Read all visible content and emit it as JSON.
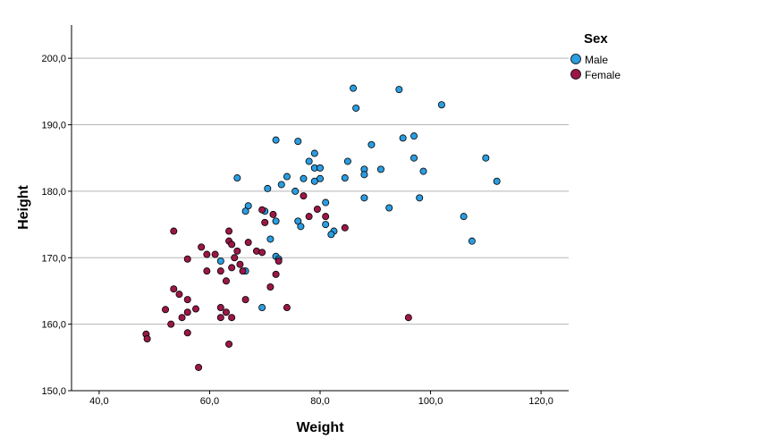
{
  "chart_data": {
    "type": "scatter",
    "title": "",
    "xlabel": "Weight",
    "ylabel": "Height",
    "xlim": [
      35,
      125
    ],
    "ylim": [
      150,
      205
    ],
    "xticks": [
      "40,0",
      "60,0",
      "80,0",
      "100,0",
      "120,0"
    ],
    "xtick_values": [
      40,
      60,
      80,
      100,
      120
    ],
    "yticks": [
      "150,0",
      "160,0",
      "170,0",
      "180,0",
      "190,0",
      "200,0"
    ],
    "ytick_values": [
      150,
      160,
      170,
      180,
      190,
      200
    ],
    "grid": "horizontal",
    "legend": {
      "title": "Sex",
      "placement": "top-right"
    },
    "series": [
      {
        "name": "Male",
        "color": "#2b9de0",
        "points": [
          [
            86.0,
            195.5
          ],
          [
            94.3,
            195.3
          ],
          [
            86.5,
            192.5
          ],
          [
            102.0,
            193.0
          ],
          [
            72.0,
            187.7
          ],
          [
            76.0,
            187.5
          ],
          [
            95.0,
            188.0
          ],
          [
            97.0,
            188.3
          ],
          [
            89.3,
            187.0
          ],
          [
            79.0,
            185.7
          ],
          [
            78.0,
            184.5
          ],
          [
            85.0,
            184.5
          ],
          [
            97.0,
            185.0
          ],
          [
            110.0,
            185.0
          ],
          [
            79.0,
            183.5
          ],
          [
            80.0,
            183.5
          ],
          [
            88.0,
            183.3
          ],
          [
            91.0,
            183.3
          ],
          [
            98.7,
            183.0
          ],
          [
            65.0,
            182.0
          ],
          [
            74.0,
            182.2
          ],
          [
            77.0,
            181.9
          ],
          [
            80.0,
            181.9
          ],
          [
            84.5,
            182.0
          ],
          [
            88.0,
            182.5
          ],
          [
            79.0,
            181.5
          ],
          [
            112.0,
            181.5
          ],
          [
            73.0,
            181.0
          ],
          [
            70.5,
            180.4
          ],
          [
            75.5,
            180.0
          ],
          [
            88.0,
            179.0
          ],
          [
            98.0,
            179.0
          ],
          [
            81.0,
            178.3
          ],
          [
            67.0,
            177.8
          ],
          [
            92.5,
            177.5
          ],
          [
            70.0,
            177.0
          ],
          [
            66.5,
            177.0
          ],
          [
            106.0,
            176.2
          ],
          [
            72.0,
            175.5
          ],
          [
            76.0,
            175.5
          ],
          [
            81.0,
            175.0
          ],
          [
            76.5,
            174.7
          ],
          [
            82.5,
            174.0
          ],
          [
            82.0,
            173.5
          ],
          [
            71.0,
            172.8
          ],
          [
            107.5,
            172.5
          ],
          [
            62.0,
            169.5
          ],
          [
            72.0,
            170.2
          ],
          [
            72.5,
            169.8
          ],
          [
            66.5,
            168.0
          ],
          [
            69.5,
            162.5
          ]
        ]
      },
      {
        "name": "Female",
        "color": "#9b1748",
        "points": [
          [
            77.0,
            179.3
          ],
          [
            69.5,
            177.2
          ],
          [
            71.5,
            176.5
          ],
          [
            79.5,
            177.3
          ],
          [
            78.0,
            176.2
          ],
          [
            81.0,
            176.2
          ],
          [
            70.0,
            175.3
          ],
          [
            84.5,
            174.5
          ],
          [
            53.5,
            174.0
          ],
          [
            63.5,
            174.0
          ],
          [
            63.5,
            172.5
          ],
          [
            64.0,
            172.0
          ],
          [
            67.0,
            172.3
          ],
          [
            58.5,
            171.6
          ],
          [
            65.0,
            171.0
          ],
          [
            68.5,
            171.0
          ],
          [
            69.5,
            170.8
          ],
          [
            59.5,
            170.5
          ],
          [
            61.0,
            170.5
          ],
          [
            64.5,
            170.0
          ],
          [
            56.0,
            169.8
          ],
          [
            72.5,
            169.5
          ],
          [
            65.5,
            169.0
          ],
          [
            64.0,
            168.5
          ],
          [
            59.5,
            168.0
          ],
          [
            62.0,
            168.0
          ],
          [
            66.0,
            168.0
          ],
          [
            72.0,
            167.5
          ],
          [
            63.0,
            166.5
          ],
          [
            53.5,
            165.3
          ],
          [
            71.0,
            165.6
          ],
          [
            54.5,
            164.5
          ],
          [
            56.0,
            163.7
          ],
          [
            66.5,
            163.7
          ],
          [
            52.0,
            162.2
          ],
          [
            57.5,
            162.3
          ],
          [
            62.0,
            162.5
          ],
          [
            74.0,
            162.5
          ],
          [
            56.0,
            161.8
          ],
          [
            63.0,
            161.8
          ],
          [
            55.0,
            161.0
          ],
          [
            62.0,
            161.0
          ],
          [
            64.0,
            161.0
          ],
          [
            96.0,
            161.0
          ],
          [
            53.0,
            160.0
          ],
          [
            56.0,
            158.7
          ],
          [
            48.5,
            158.5
          ],
          [
            48.7,
            157.8
          ],
          [
            63.5,
            157.0
          ],
          [
            58.0,
            153.5
          ]
        ]
      }
    ]
  }
}
